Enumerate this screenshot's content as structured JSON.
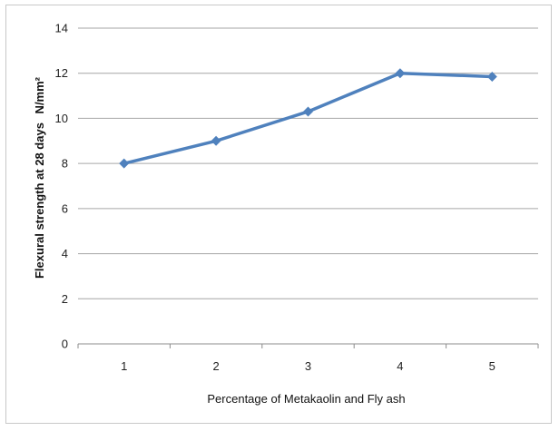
{
  "chart_data": {
    "type": "line",
    "x": [
      1,
      2,
      3,
      4,
      5
    ],
    "series": [
      {
        "values": [
          8,
          9,
          10.3,
          12,
          11.85
        ]
      }
    ],
    "xlabel": "Percentage of  Metakaolin and Fly ash",
    "ylabel": "Flexural strength at 28 days",
    "ylabel_unit": "N/mm²",
    "ylim": [
      0,
      14
    ],
    "yticks": [
      "0",
      "2",
      "4",
      "6",
      "8",
      "10",
      "12",
      "14"
    ],
    "xticks": [
      "1",
      "2",
      "3",
      "4",
      "5"
    ],
    "grid": "horizontal",
    "line_color": "#4f81bd"
  }
}
